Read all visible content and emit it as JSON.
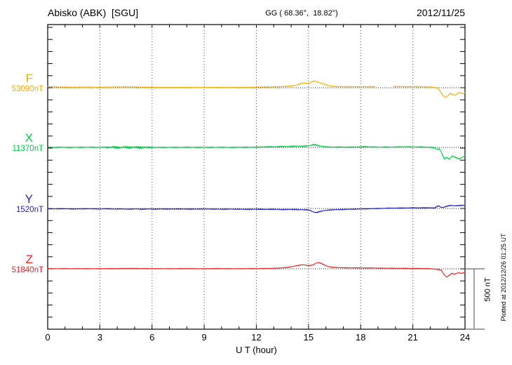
{
  "header": {
    "station": "Abisko (ABK)  [SGU]",
    "coords": "GG ( 68.36°,  18.82°)",
    "date": "2012/11/25"
  },
  "footer": {
    "scale_label": "500 nT",
    "plotted_at": "Plotted at 2012/12/26 01:25 UT"
  },
  "chart_data": {
    "type": "line",
    "title": "Abisko (ABK) [SGU] magnetogram 2012/11/25",
    "xlabel": "U T (hour)",
    "ylabel": "",
    "x_range": [
      0,
      24
    ],
    "x_ticks": [
      0,
      3,
      6,
      9,
      12,
      15,
      18,
      21,
      24
    ],
    "x_tick_labels": [
      "0",
      "3",
      "6",
      "9",
      "12",
      "15",
      "18",
      "21",
      "24"
    ],
    "x_minor_tick_step_hours": 1,
    "y_tick_step_nT": 100,
    "scale_bar_nT": 500,
    "grid": "dotted vertical every 3 h, dotted horizontal baseline per channel",
    "legend_position": "left of each trace",
    "series": [
      {
        "id": "F",
        "label": "F",
        "baseline_label": "53090nT",
        "baseline_nT": 53090,
        "color": "#FFAA00",
        "noise_amp_nT": 3,
        "gaps": [
          [
            18.82,
            19.88
          ]
        ],
        "points": [
          [
            0,
            10
          ],
          [
            0.3,
            7
          ],
          [
            0.8,
            5
          ],
          [
            1.5,
            4
          ],
          [
            2.2,
            5
          ],
          [
            3,
            3
          ],
          [
            3.5,
            5
          ],
          [
            4,
            6
          ],
          [
            4.5,
            7
          ],
          [
            5,
            6
          ],
          [
            5.5,
            4
          ],
          [
            6,
            3
          ],
          [
            6.5,
            2
          ],
          [
            7,
            3
          ],
          [
            7.5,
            2
          ],
          [
            8,
            3
          ],
          [
            8.5,
            2
          ],
          [
            9,
            2
          ],
          [
            9.5,
            3
          ],
          [
            10,
            3
          ],
          [
            10.5,
            2
          ],
          [
            11,
            3
          ],
          [
            11.5,
            3
          ],
          [
            12,
            5
          ],
          [
            12.5,
            6
          ],
          [
            13,
            7
          ],
          [
            13.5,
            9
          ],
          [
            13.8,
            12
          ],
          [
            14.1,
            16
          ],
          [
            14.4,
            26
          ],
          [
            14.65,
            40
          ],
          [
            14.85,
            36
          ],
          [
            15.05,
            38
          ],
          [
            15.3,
            56
          ],
          [
            15.45,
            52
          ],
          [
            15.6,
            44
          ],
          [
            15.8,
            34
          ],
          [
            16,
            24
          ],
          [
            16.2,
            16
          ],
          [
            16.5,
            11
          ],
          [
            16.8,
            9
          ],
          [
            17.2,
            8
          ],
          [
            17.6,
            9
          ],
          [
            18,
            8
          ],
          [
            18.4,
            9
          ],
          [
            18.8,
            8
          ],
          [
            19.9,
            9
          ],
          [
            20.2,
            10
          ],
          [
            20.6,
            8
          ],
          [
            21,
            9
          ],
          [
            21.4,
            8
          ],
          [
            21.8,
            7
          ],
          [
            22.1,
            5
          ],
          [
            22.3,
            1
          ],
          [
            22.45,
            -8
          ],
          [
            22.6,
            -35
          ],
          [
            22.75,
            -68
          ],
          [
            22.9,
            -80
          ],
          [
            23.05,
            -60
          ],
          [
            23.15,
            -45
          ],
          [
            23.3,
            -58
          ],
          [
            23.45,
            -62
          ],
          [
            23.6,
            -42
          ],
          [
            23.75,
            -38
          ],
          [
            23.85,
            -52
          ],
          [
            24,
            -40
          ]
        ]
      },
      {
        "id": "X",
        "label": "X",
        "baseline_label": "11370nT",
        "baseline_nT": 11370,
        "color": "#00CC44",
        "noise_amp_nT": 5,
        "noise_zones": [
          {
            "from": 3.4,
            "to": 5.9,
            "amp": 12
          }
        ],
        "gaps": [],
        "points": [
          [
            0,
            4
          ],
          [
            0.4,
            0
          ],
          [
            0.8,
            2
          ],
          [
            1.2,
            -1
          ],
          [
            1.6,
            1
          ],
          [
            2,
            0
          ],
          [
            2.4,
            2
          ],
          [
            2.8,
            0
          ],
          [
            3.2,
            2
          ],
          [
            3.5,
            0
          ],
          [
            3.8,
            3
          ],
          [
            4.1,
            -2
          ],
          [
            4.4,
            4
          ],
          [
            4.7,
            -3
          ],
          [
            5,
            3
          ],
          [
            5.3,
            -2
          ],
          [
            5.6,
            2
          ],
          [
            5.9,
            0
          ],
          [
            6.3,
            1
          ],
          [
            6.7,
            0
          ],
          [
            7.1,
            1
          ],
          [
            7.5,
            0
          ],
          [
            8,
            1
          ],
          [
            8.5,
            0
          ],
          [
            9,
            1
          ],
          [
            9.5,
            0
          ],
          [
            10,
            1
          ],
          [
            10.5,
            0
          ],
          [
            11,
            1
          ],
          [
            11.5,
            1
          ],
          [
            12,
            2
          ],
          [
            12.4,
            4
          ],
          [
            12.8,
            6
          ],
          [
            13.1,
            4
          ],
          [
            13.4,
            8
          ],
          [
            13.7,
            6
          ],
          [
            14,
            9
          ],
          [
            14.3,
            11
          ],
          [
            14.6,
            9
          ],
          [
            14.9,
            12
          ],
          [
            15.1,
            16
          ],
          [
            15.3,
            24
          ],
          [
            15.45,
            20
          ],
          [
            15.6,
            13
          ],
          [
            15.8,
            8
          ],
          [
            16.1,
            4
          ],
          [
            16.4,
            2
          ],
          [
            16.8,
            3
          ],
          [
            17.2,
            2
          ],
          [
            17.6,
            3
          ],
          [
            18,
            4
          ],
          [
            18.3,
            6
          ],
          [
            18.6,
            3
          ],
          [
            19,
            2
          ],
          [
            19.4,
            3
          ],
          [
            19.8,
            2
          ],
          [
            20.2,
            4
          ],
          [
            20.6,
            5
          ],
          [
            21,
            3
          ],
          [
            21.4,
            4
          ],
          [
            21.8,
            2
          ],
          [
            22.1,
            0
          ],
          [
            22.3,
            -6
          ],
          [
            22.4,
            -18
          ],
          [
            22.5,
            -10
          ],
          [
            22.6,
            -28
          ],
          [
            22.7,
            -60
          ],
          [
            22.8,
            -95
          ],
          [
            22.95,
            -82
          ],
          [
            23.1,
            -98
          ],
          [
            23.25,
            -72
          ],
          [
            23.4,
            -78
          ],
          [
            23.55,
            -90
          ],
          [
            23.7,
            -95
          ],
          [
            23.85,
            -82
          ],
          [
            24,
            -68
          ]
        ]
      },
      {
        "id": "Y",
        "label": "Y",
        "baseline_label": "1520nT",
        "baseline_nT": 1520,
        "color": "#2222CC",
        "noise_amp_nT": 4,
        "gaps": [],
        "points": [
          [
            0,
            -2
          ],
          [
            0.5,
            -3
          ],
          [
            1,
            -2
          ],
          [
            1.5,
            -4
          ],
          [
            2,
            -3
          ],
          [
            2.5,
            -2
          ],
          [
            3,
            -4
          ],
          [
            3.4,
            -2
          ],
          [
            3.8,
            -5
          ],
          [
            4.2,
            -3
          ],
          [
            4.6,
            -6
          ],
          [
            5,
            -3
          ],
          [
            5.4,
            -6
          ],
          [
            5.8,
            -4
          ],
          [
            6.2,
            -5
          ],
          [
            6.6,
            -4
          ],
          [
            7,
            -5
          ],
          [
            7.5,
            -4
          ],
          [
            8,
            -5
          ],
          [
            8.5,
            -5
          ],
          [
            9,
            -4
          ],
          [
            9.5,
            -5
          ],
          [
            10,
            -6
          ],
          [
            10.5,
            -5
          ],
          [
            11,
            -6
          ],
          [
            11.5,
            -7
          ],
          [
            12,
            -6
          ],
          [
            12.5,
            -8
          ],
          [
            13,
            -7
          ],
          [
            13.5,
            -9
          ],
          [
            14,
            -8
          ],
          [
            14.5,
            -10
          ],
          [
            15,
            -12
          ],
          [
            15.15,
            -20
          ],
          [
            15.3,
            -30
          ],
          [
            15.45,
            -34
          ],
          [
            15.6,
            -28
          ],
          [
            15.8,
            -20
          ],
          [
            16.1,
            -14
          ],
          [
            16.5,
            -10
          ],
          [
            17,
            -8
          ],
          [
            17.5,
            -6
          ],
          [
            18,
            -4
          ],
          [
            18.5,
            -2
          ],
          [
            19,
            0
          ],
          [
            19.5,
            2
          ],
          [
            20,
            3
          ],
          [
            20.5,
            4
          ],
          [
            21,
            5
          ],
          [
            21.5,
            5
          ],
          [
            22,
            6
          ],
          [
            22.25,
            4
          ],
          [
            22.4,
            18
          ],
          [
            22.5,
            22
          ],
          [
            22.6,
            10
          ],
          [
            22.75,
            9
          ],
          [
            22.9,
            16
          ],
          [
            23.05,
            22
          ],
          [
            23.2,
            25
          ],
          [
            23.45,
            22
          ],
          [
            23.7,
            25
          ],
          [
            24,
            26
          ]
        ]
      },
      {
        "id": "Z",
        "label": "Z",
        "baseline_label": "51840nT",
        "baseline_nT": 51840,
        "color": "#EE2222",
        "noise_amp_nT": 3,
        "gaps": [],
        "points": [
          [
            0,
            2
          ],
          [
            0.5,
            1
          ],
          [
            1,
            2
          ],
          [
            1.5,
            1
          ],
          [
            2,
            2
          ],
          [
            2.5,
            1
          ],
          [
            3,
            1
          ],
          [
            3.5,
            2
          ],
          [
            4,
            2
          ],
          [
            4.5,
            3
          ],
          [
            5,
            3
          ],
          [
            5.5,
            2
          ],
          [
            6,
            2
          ],
          [
            6.5,
            1
          ],
          [
            7,
            1
          ],
          [
            7.5,
            2
          ],
          [
            8,
            2
          ],
          [
            8.5,
            1
          ],
          [
            9,
            1
          ],
          [
            9.5,
            2
          ],
          [
            10,
            2
          ],
          [
            10.5,
            1
          ],
          [
            11,
            1
          ],
          [
            11.5,
            2
          ],
          [
            12,
            2
          ],
          [
            12.5,
            3
          ],
          [
            13,
            4
          ],
          [
            13.4,
            7
          ],
          [
            13.8,
            12
          ],
          [
            14.1,
            20
          ],
          [
            14.4,
            28
          ],
          [
            14.65,
            34
          ],
          [
            14.85,
            30
          ],
          [
            15.05,
            27
          ],
          [
            15.25,
            32
          ],
          [
            15.45,
            48
          ],
          [
            15.6,
            52
          ],
          [
            15.75,
            44
          ],
          [
            15.95,
            30
          ],
          [
            16.15,
            18
          ],
          [
            16.4,
            13
          ],
          [
            16.7,
            10
          ],
          [
            17,
            9
          ],
          [
            17.4,
            8
          ],
          [
            17.8,
            8
          ],
          [
            18.2,
            7
          ],
          [
            18.6,
            7
          ],
          [
            19,
            6
          ],
          [
            19.4,
            5
          ],
          [
            19.8,
            5
          ],
          [
            20.2,
            4
          ],
          [
            20.6,
            4
          ],
          [
            21,
            3
          ],
          [
            21.4,
            3
          ],
          [
            21.8,
            2
          ],
          [
            22.1,
            1
          ],
          [
            22.3,
            -3
          ],
          [
            22.5,
            -7
          ],
          [
            22.65,
            -12
          ],
          [
            22.8,
            -50
          ],
          [
            22.95,
            -68
          ],
          [
            23.1,
            -52
          ],
          [
            23.25,
            -36
          ],
          [
            23.4,
            -46
          ],
          [
            23.6,
            -32
          ],
          [
            23.8,
            -38
          ],
          [
            24,
            -30
          ]
        ]
      }
    ]
  }
}
